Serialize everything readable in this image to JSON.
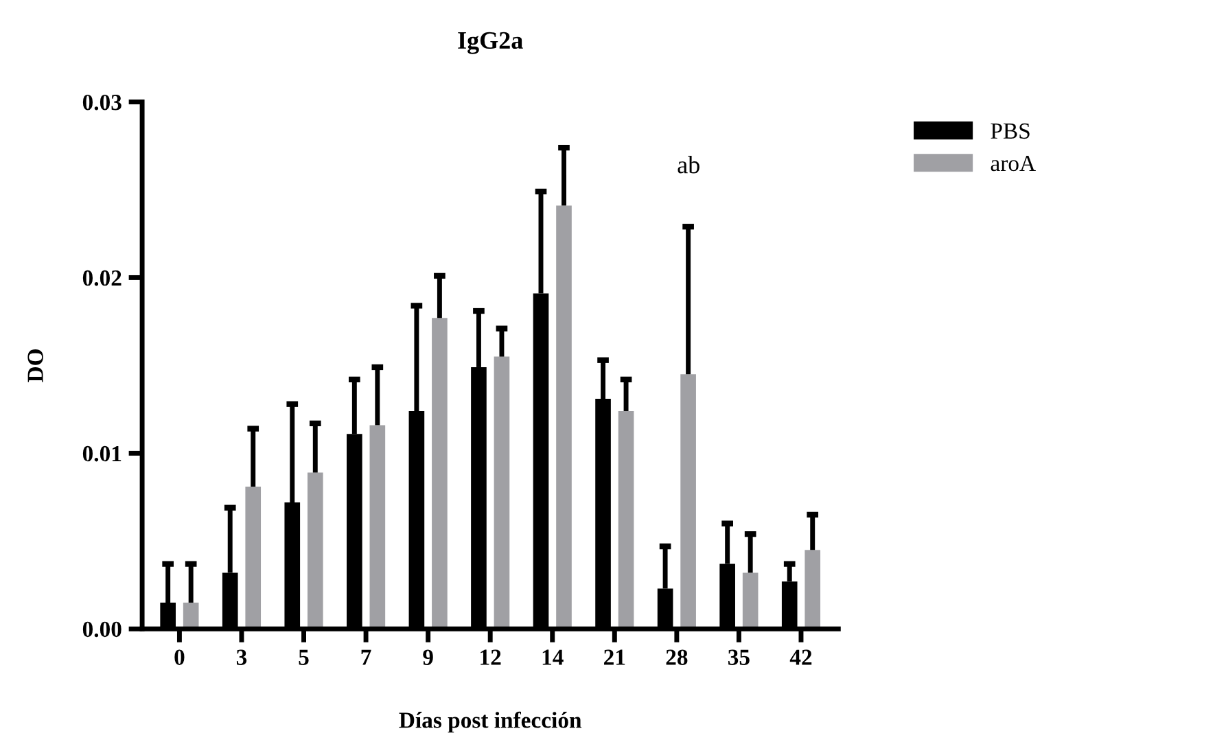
{
  "chart_data": {
    "type": "bar",
    "title": "IgG2a",
    "xlabel": "Días post infección",
    "ylabel": "DO",
    "categories": [
      "0",
      "3",
      "5",
      "7",
      "9",
      "12",
      "14",
      "21",
      "28",
      "35",
      "42"
    ],
    "series": [
      {
        "name": "PBS",
        "color": "#000000",
        "values": [
          0.0015,
          0.0032,
          0.0072,
          0.0111,
          0.0124,
          0.0149,
          0.0191,
          0.0131,
          0.0023,
          0.0037,
          0.0027
        ],
        "errors": [
          [
            0.0015,
            0.0037
          ],
          [
            0.0032,
            0.0069
          ],
          [
            0.0072,
            0.0128
          ],
          [
            0.0111,
            0.0142
          ],
          [
            0.0124,
            0.0184
          ],
          [
            0.0149,
            0.0181
          ],
          [
            0.0191,
            0.0249
          ],
          [
            0.0131,
            0.0153
          ],
          [
            0.0023,
            0.0047
          ],
          [
            0.0037,
            0.006
          ],
          [
            0.0027,
            0.0037
          ]
        ]
      },
      {
        "name": "aroA",
        "color": "#a0a0a4",
        "values": [
          0.0015,
          0.0081,
          0.0089,
          0.0116,
          0.0177,
          0.0155,
          0.0241,
          0.0124,
          0.0145,
          0.0032,
          0.0045
        ],
        "errors": [
          [
            0.0015,
            0.0037
          ],
          [
            0.0081,
            0.0114
          ],
          [
            0.0089,
            0.0117
          ],
          [
            0.0116,
            0.0149
          ],
          [
            0.0177,
            0.0201
          ],
          [
            0.0155,
            0.0171
          ],
          [
            0.0241,
            0.0274
          ],
          [
            0.0124,
            0.0142
          ],
          [
            0.0145,
            0.0229
          ],
          [
            0.0032,
            0.0054
          ],
          [
            0.0045,
            0.0065
          ]
        ]
      }
    ],
    "ylim": [
      0,
      0.03
    ],
    "yticks": [
      {
        "value": 0,
        "label": "0.00"
      },
      {
        "value": 0.01,
        "label": "0.01"
      },
      {
        "value": 0.02,
        "label": "0.02"
      },
      {
        "value": 0.03,
        "label": "0.03"
      }
    ],
    "annotations": [
      "ab"
    ],
    "legend": "top right",
    "grid": false
  }
}
